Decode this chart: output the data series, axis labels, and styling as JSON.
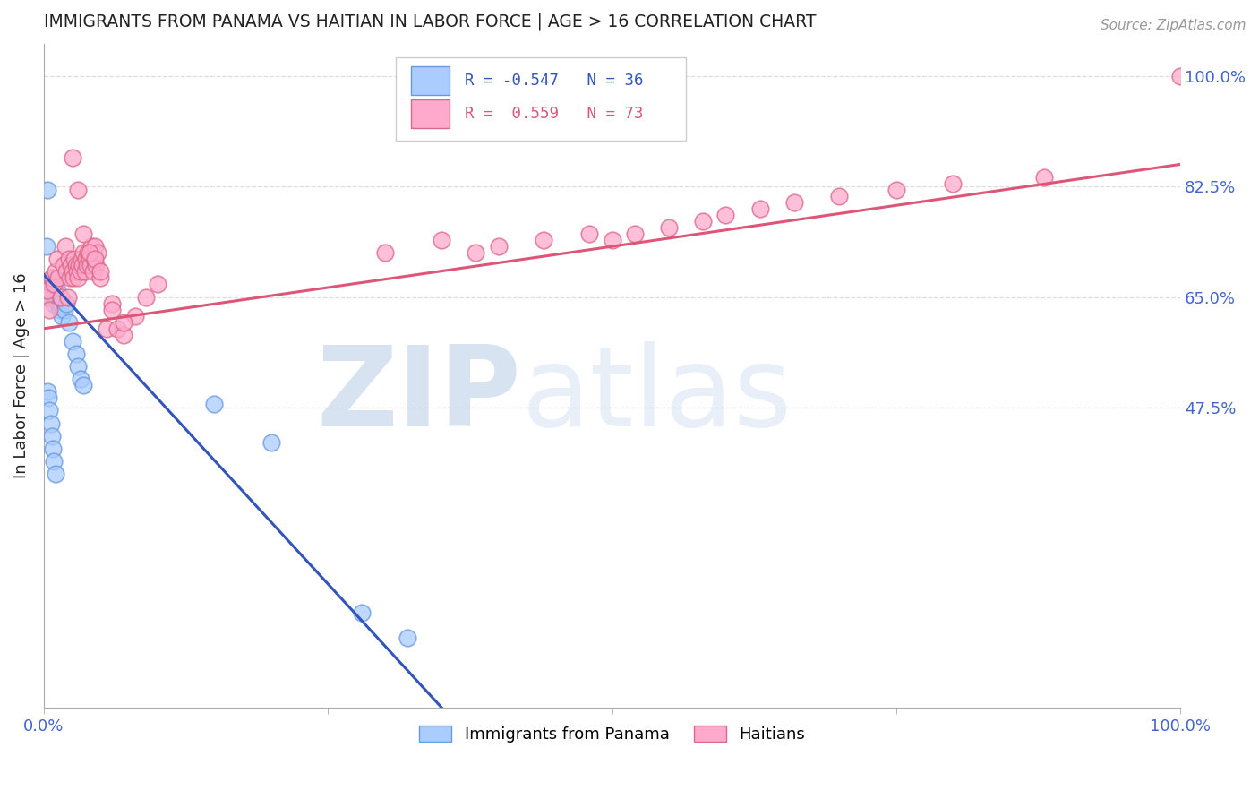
{
  "title": "IMMIGRANTS FROM PANAMA VS HAITIAN IN LABOR FORCE | AGE > 16 CORRELATION CHART",
  "source": "Source: ZipAtlas.com",
  "ylabel": "In Labor Force | Age > 16",
  "xlim": [
    0.0,
    1.0
  ],
  "ylim": [
    0.0,
    1.05
  ],
  "yticks": [
    0.475,
    0.65,
    0.825,
    1.0
  ],
  "ytick_labels": [
    "47.5%",
    "65.0%",
    "82.5%",
    "100.0%"
  ],
  "xticks": [
    0.0,
    0.25,
    0.5,
    0.75,
    1.0
  ],
  "xtick_labels": [
    "0.0%",
    "",
    "",
    "",
    "100.0%"
  ],
  "watermark_zip": "ZIP",
  "watermark_atlas": "atlas",
  "legend_R1": "R = -0.547",
  "legend_N1": "N = 36",
  "legend_R2": "R =  0.559",
  "legend_N2": "N = 73",
  "label1": "Immigrants from Panama",
  "label2": "Haitians",
  "color_panama_face": "#aaccff",
  "color_panama_edge": "#6699dd",
  "color_haitian_face": "#ffaacc",
  "color_haitian_edge": "#dd6688",
  "color_line_panama": "#3355bb",
  "color_line_haitian": "#dd5577",
  "title_color": "#222222",
  "axis_label_color": "#4466cc",
  "grid_color": "#dddddd",
  "background_color": "#ffffff",
  "panama_x": [
    0.002,
    0.003,
    0.004,
    0.005,
    0.006,
    0.007,
    0.008,
    0.009,
    0.01,
    0.01,
    0.011,
    0.012,
    0.013,
    0.014,
    0.015,
    0.016,
    0.018,
    0.02,
    0.022,
    0.025,
    0.028,
    0.03,
    0.032,
    0.035,
    0.003,
    0.004,
    0.005,
    0.006,
    0.007,
    0.008,
    0.009,
    0.01,
    0.15,
    0.2,
    0.28,
    0.32
  ],
  "panama_y": [
    0.73,
    0.82,
    0.66,
    0.65,
    0.67,
    0.68,
    0.65,
    0.64,
    0.65,
    0.66,
    0.65,
    0.66,
    0.64,
    0.63,
    0.64,
    0.62,
    0.63,
    0.64,
    0.61,
    0.58,
    0.56,
    0.54,
    0.52,
    0.51,
    0.5,
    0.49,
    0.47,
    0.45,
    0.43,
    0.41,
    0.39,
    0.37,
    0.48,
    0.42,
    0.15,
    0.11
  ],
  "haitian_x": [
    0.001,
    0.003,
    0.005,
    0.007,
    0.009,
    0.01,
    0.012,
    0.013,
    0.015,
    0.017,
    0.019,
    0.02,
    0.021,
    0.022,
    0.023,
    0.024,
    0.025,
    0.026,
    0.027,
    0.028,
    0.029,
    0.03,
    0.031,
    0.032,
    0.033,
    0.034,
    0.035,
    0.036,
    0.037,
    0.038,
    0.039,
    0.04,
    0.041,
    0.042,
    0.043,
    0.044,
    0.045,
    0.046,
    0.047,
    0.05,
    0.055,
    0.06,
    0.065,
    0.07,
    0.08,
    0.09,
    0.1,
    0.035,
    0.04,
    0.045,
    0.05,
    0.06,
    0.07,
    0.3,
    0.35,
    0.38,
    0.4,
    0.44,
    0.48,
    0.5,
    0.52,
    0.55,
    0.58,
    0.6,
    0.63,
    0.66,
    0.7,
    0.75,
    0.8,
    0.88,
    1.0,
    0.025,
    0.03
  ],
  "haitian_y": [
    0.65,
    0.66,
    0.63,
    0.68,
    0.67,
    0.69,
    0.71,
    0.68,
    0.65,
    0.7,
    0.73,
    0.69,
    0.65,
    0.71,
    0.68,
    0.7,
    0.69,
    0.68,
    0.71,
    0.7,
    0.69,
    0.68,
    0.7,
    0.69,
    0.71,
    0.7,
    0.72,
    0.69,
    0.71,
    0.7,
    0.72,
    0.71,
    0.7,
    0.73,
    0.69,
    0.71,
    0.73,
    0.7,
    0.72,
    0.68,
    0.6,
    0.64,
    0.6,
    0.59,
    0.62,
    0.65,
    0.67,
    0.75,
    0.72,
    0.71,
    0.69,
    0.63,
    0.61,
    0.72,
    0.74,
    0.72,
    0.73,
    0.74,
    0.75,
    0.74,
    0.75,
    0.76,
    0.77,
    0.78,
    0.79,
    0.8,
    0.81,
    0.82,
    0.83,
    0.84,
    1.0,
    0.87,
    0.82
  ],
  "panama_trend_x": [
    0.0,
    0.35
  ],
  "panama_trend_y": [
    0.685,
    0.0
  ],
  "haitian_trend_x": [
    0.0,
    1.0
  ],
  "haitian_trend_y": [
    0.6,
    0.86
  ]
}
